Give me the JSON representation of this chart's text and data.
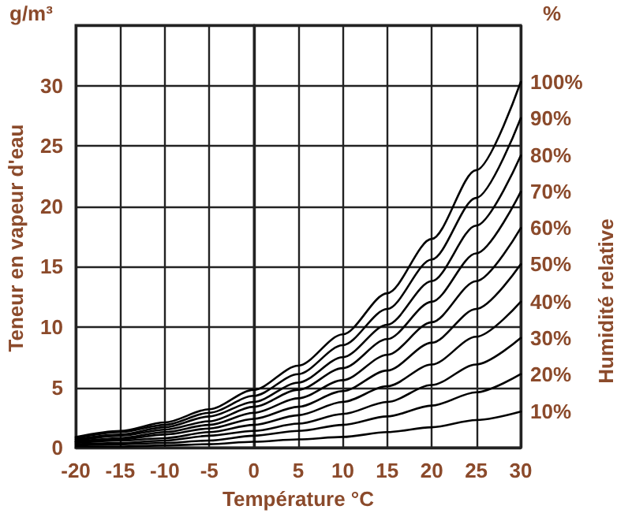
{
  "chart_data": {
    "type": "line",
    "xlabel": "Température °C",
    "ylabel": "Teneur en vapeur d'eau",
    "y2label": "Humidité relative",
    "annotations": [
      "g/m³",
      "%"
    ],
    "x": [
      -20,
      -15,
      -10,
      -5,
      0,
      5,
      10,
      15,
      20,
      25,
      30
    ],
    "xlim": [
      -20,
      30
    ],
    "xticks": [
      -20,
      -15,
      -10,
      -5,
      0,
      5,
      10,
      15,
      20,
      25,
      30
    ],
    "ylim": [
      0,
      35
    ],
    "yticks": [
      0,
      5,
      10,
      15,
      20,
      25,
      30,
      {
        "value": 35,
        "label": null
      }
    ],
    "grid": true,
    "legend": false,
    "marker": "none",
    "line_style": "solid",
    "series": [
      {
        "name": "100%",
        "color": "#000000",
        "values": [
          0.9,
          1.4,
          2.1,
          3.2,
          4.8,
          6.8,
          9.4,
          12.8,
          17.3,
          23.0,
          30.3
        ]
      },
      {
        "name": "90%",
        "color": "#000000",
        "values": [
          0.8,
          1.3,
          1.9,
          2.9,
          4.3,
          6.1,
          8.5,
          11.5,
          15.6,
          20.7,
          27.3
        ]
      },
      {
        "name": "80%",
        "color": "#000000",
        "values": [
          0.7,
          1.1,
          1.7,
          2.6,
          3.8,
          5.4,
          7.5,
          10.2,
          13.8,
          18.4,
          24.2
        ]
      },
      {
        "name": "70%",
        "color": "#000000",
        "values": [
          0.6,
          1.0,
          1.5,
          2.2,
          3.4,
          4.8,
          6.6,
          9.0,
          12.1,
          16.1,
          21.2
        ]
      },
      {
        "name": "60%",
        "color": "#000000",
        "values": [
          0.5,
          0.8,
          1.3,
          1.9,
          2.9,
          4.1,
          5.6,
          7.7,
          10.4,
          13.8,
          18.2
        ]
      },
      {
        "name": "50%",
        "color": "#000000",
        "values": [
          0.5,
          0.7,
          1.1,
          1.6,
          2.4,
          3.4,
          4.7,
          6.4,
          8.7,
          11.5,
          15.2
        ]
      },
      {
        "name": "40%",
        "color": "#000000",
        "values": [
          0.4,
          0.6,
          0.8,
          1.3,
          1.9,
          2.7,
          3.8,
          5.1,
          6.9,
          9.2,
          12.1
        ]
      },
      {
        "name": "30%",
        "color": "#000000",
        "values": [
          0.3,
          0.4,
          0.6,
          1.0,
          1.4,
          2.0,
          2.8,
          3.8,
          5.2,
          6.9,
          9.1
        ]
      },
      {
        "name": "20%",
        "color": "#000000",
        "values": [
          0.2,
          0.3,
          0.4,
          0.6,
          1.0,
          1.4,
          1.9,
          2.6,
          3.5,
          4.6,
          6.1
        ]
      },
      {
        "name": "10%",
        "color": "#000000",
        "values": [
          0.1,
          0.1,
          0.2,
          0.3,
          0.5,
          0.7,
          0.9,
          1.3,
          1.7,
          2.3,
          3.0
        ]
      }
    ]
  }
}
